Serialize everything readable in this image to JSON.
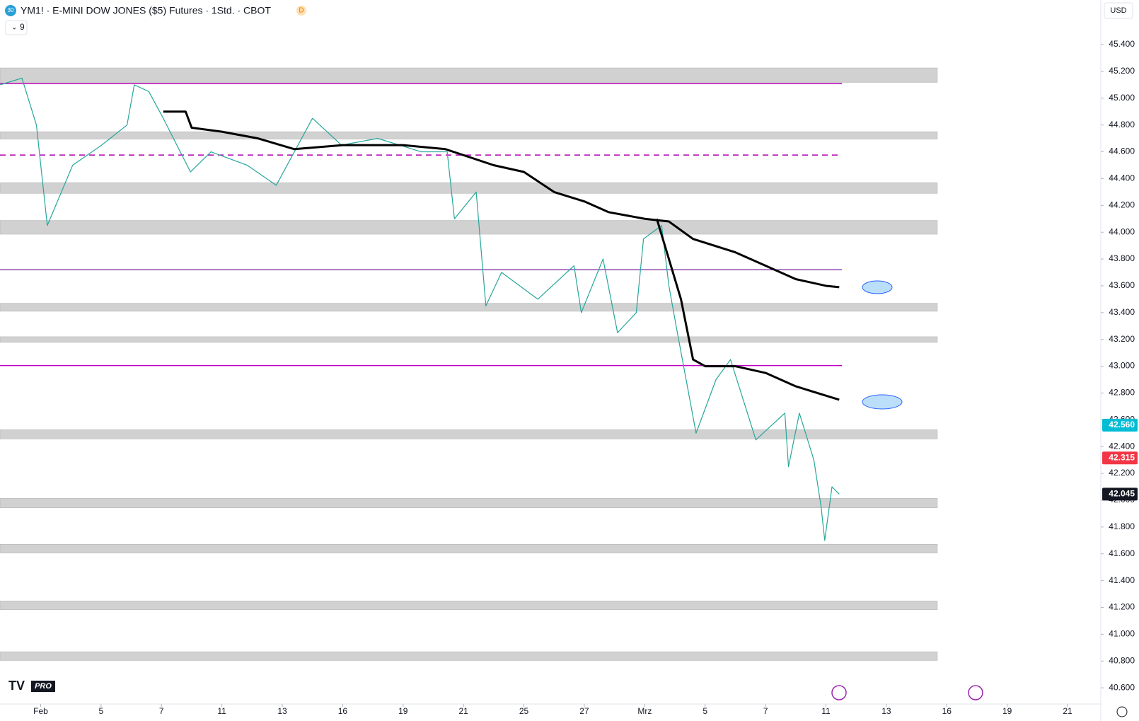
{
  "header": {
    "badge": "30",
    "title": "YM1! · E-MINI DOW JONES ($5) Futures · 1Std. · CBOT",
    "flag": "D",
    "indicator_count": "9",
    "currency": "USD",
    "logo": "PRO"
  },
  "chart_data": {
    "type": "line",
    "ylim": [
      40479,
      45733
    ],
    "yticks": [
      {
        "value": 40600,
        "label": "40.600"
      },
      {
        "value": 40800,
        "label": "40.800"
      },
      {
        "value": 41000,
        "label": "41.000"
      },
      {
        "value": 41200,
        "label": "41.200"
      },
      {
        "value": 41400,
        "label": "41.400"
      },
      {
        "value": 41600,
        "label": "41.600"
      },
      {
        "value": 41800,
        "label": "41.800"
      },
      {
        "value": 42000,
        "label": "42.000"
      },
      {
        "value": 42200,
        "label": "42.200"
      },
      {
        "value": 42400,
        "label": "42.400"
      },
      {
        "value": 42600,
        "label": "42.600"
      },
      {
        "value": 42800,
        "label": "42.800"
      },
      {
        "value": 43000,
        "label": "43.000"
      },
      {
        "value": 43200,
        "label": "43.200"
      },
      {
        "value": 43400,
        "label": "43.400"
      },
      {
        "value": 43600,
        "label": "43.600"
      },
      {
        "value": 43800,
        "label": "43.800"
      },
      {
        "value": 44000,
        "label": "44.000"
      },
      {
        "value": 44200,
        "label": "44.200"
      },
      {
        "value": 44400,
        "label": "44.400"
      },
      {
        "value": 44600,
        "label": "44.600"
      },
      {
        "value": 44800,
        "label": "44.800"
      },
      {
        "value": 45000,
        "label": "45.000"
      },
      {
        "value": 45200,
        "label": "45.200"
      },
      {
        "value": 45400,
        "label": "45.400"
      }
    ],
    "xlim": [
      -0.673,
      17.55
    ],
    "xticks": [
      {
        "value": 0,
        "label": "Feb"
      },
      {
        "value": 1,
        "label": "5"
      },
      {
        "value": 2,
        "label": "7"
      },
      {
        "value": 3,
        "label": "11"
      },
      {
        "value": 4,
        "label": "13"
      },
      {
        "value": 5,
        "label": "16"
      },
      {
        "value": 6,
        "label": "19"
      },
      {
        "value": 7,
        "label": "21"
      },
      {
        "value": 8,
        "label": "25"
      },
      {
        "value": 9,
        "label": "27"
      },
      {
        "value": 10,
        "label": "Mrz"
      },
      {
        "value": 11,
        "label": "5"
      },
      {
        "value": 12,
        "label": "7"
      },
      {
        "value": 13,
        "label": "11"
      },
      {
        "value": 14,
        "label": "13"
      },
      {
        "value": 15,
        "label": "16"
      },
      {
        "value": 16,
        "label": "19"
      },
      {
        "value": 17,
        "label": "21"
      }
    ],
    "grid": false,
    "zones": [
      [
        45118,
        45226
      ],
      [
        44695,
        44750
      ],
      [
        44290,
        44370
      ],
      [
        43985,
        44088
      ],
      [
        43410,
        43470
      ],
      [
        43178,
        43220
      ],
      [
        42457,
        42527
      ],
      [
        41943,
        42014
      ],
      [
        41606,
        41671
      ],
      [
        41183,
        41248
      ],
      [
        40804,
        40869
      ]
    ],
    "zone_color": "#d1d1d1",
    "levels": [
      {
        "value": 45110,
        "color": "#b000b0",
        "dash": false
      },
      {
        "value": 44576,
        "color": "#b000b0",
        "dash": true
      },
      {
        "value": 43720,
        "color": "#8e44ad",
        "dash": false
      },
      {
        "value": 43005,
        "color": "#c000c0",
        "dash": false
      }
    ],
    "series": [
      {
        "color": "#26a69a",
        "width": 1.2,
        "x": [
          -0.67,
          -0.31,
          -0.07,
          0.11,
          0.53,
          1.01,
          1.43,
          1.55,
          1.79,
          2.03,
          2.48,
          2.82,
          3.42,
          3.9,
          4.5,
          4.98,
          5.58,
          6.3,
          6.73,
          6.85,
          7.21,
          7.37,
          7.63,
          8.23,
          8.83,
          8.95,
          9.31,
          9.55,
          9.86,
          9.98,
          10.28,
          10.4,
          10.52,
          10.85,
          11.18,
          11.42,
          11.84,
          12.32,
          12.38,
          12.56,
          12.8,
          12.92,
          12.98,
          13.1,
          13.22
        ],
        "values": [
          45100,
          45150,
          44800,
          44050,
          44500,
          44650,
          44800,
          45100,
          45050,
          44850,
          44450,
          44600,
          44500,
          44350,
          44850,
          44650,
          44700,
          44600,
          44600,
          44100,
          44300,
          43450,
          43700,
          43500,
          43750,
          43400,
          43800,
          43250,
          43400,
          43950,
          44050,
          43600,
          43300,
          42500,
          42900,
          43050,
          42450,
          42650,
          42250,
          42650,
          42300,
          41950,
          41700,
          42100,
          42045
        ]
      },
      {
        "color": "#000000",
        "width": 3,
        "x": [
          2.03,
          2.4,
          2.5,
          3.0,
          3.6,
          4.2,
          5.0,
          6.0,
          6.7,
          7.5,
          8.0,
          8.5,
          9.0,
          9.4,
          10.0,
          10.4,
          10.8,
          11.5,
          12.0,
          12.5,
          13.0,
          13.22
        ],
        "values": [
          44900,
          44900,
          44780,
          44750,
          44700,
          44620,
          44650,
          44650,
          44620,
          44500,
          44450,
          44300,
          44230,
          44150,
          44100,
          44080,
          43950,
          43850,
          43750,
          43650,
          43600,
          43590
        ]
      },
      {
        "color": "#000000",
        "width": 3,
        "x": [
          10.2,
          10.4,
          10.6,
          10.8,
          11.0,
          11.5,
          12.0,
          12.5,
          13.0,
          13.22
        ],
        "values": [
          44100,
          43800,
          43500,
          43050,
          43000,
          43000,
          42950,
          42850,
          42780,
          42750
        ]
      }
    ],
    "price_labels": [
      {
        "value": 42560,
        "label": "42.560",
        "color": "#00bcd4"
      },
      {
        "value": 42315,
        "label": "42.315",
        "color": "#f23645"
      },
      {
        "value": 42045,
        "label": "42.045",
        "color": "#131722"
      }
    ]
  }
}
